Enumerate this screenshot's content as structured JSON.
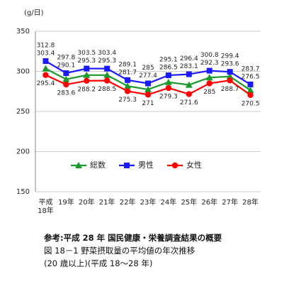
{
  "chart_data": {
    "type": "line",
    "unit_label": "(g/日)",
    "categories": [
      "平成\n18年",
      "19年",
      "20年",
      "21年",
      "22年",
      "23年",
      "24年",
      "25年",
      "26年",
      "27年",
      "28年"
    ],
    "series": [
      {
        "name": "総数",
        "color": "#1a9a2a",
        "marker": "triangle",
        "values": [
          303.4,
          290.1,
          295.3,
          295.3,
          281.7,
          277.4,
          286.5,
          283.1,
          292.3,
          293.6,
          276.5
        ]
      },
      {
        "name": "男性",
        "color": "#1a1aff",
        "marker": "square",
        "values": [
          312.8,
          297.8,
          303.5,
          303.4,
          289.1,
          285.0,
          295.1,
          296.4,
          300.8,
          299.4,
          283.7
        ]
      },
      {
        "name": "女性",
        "color": "#ff0000",
        "marker": "circle",
        "values": [
          295.4,
          283.6,
          288.2,
          288.5,
          275.3,
          271.0,
          279.3,
          271.6,
          285.0,
          288.7,
          270.5
        ]
      }
    ],
    "ylim": [
      150,
      350
    ],
    "yticks": [
      150,
      200,
      250,
      300,
      350
    ],
    "grid": true,
    "caption": [
      "参考:平成 28 年 国民健康・栄養調査結果の概要",
      "図 18－1 野菜摂取量の平均値の年次推移",
      "(20 歳以上)(平成 18～28 年)"
    ]
  }
}
